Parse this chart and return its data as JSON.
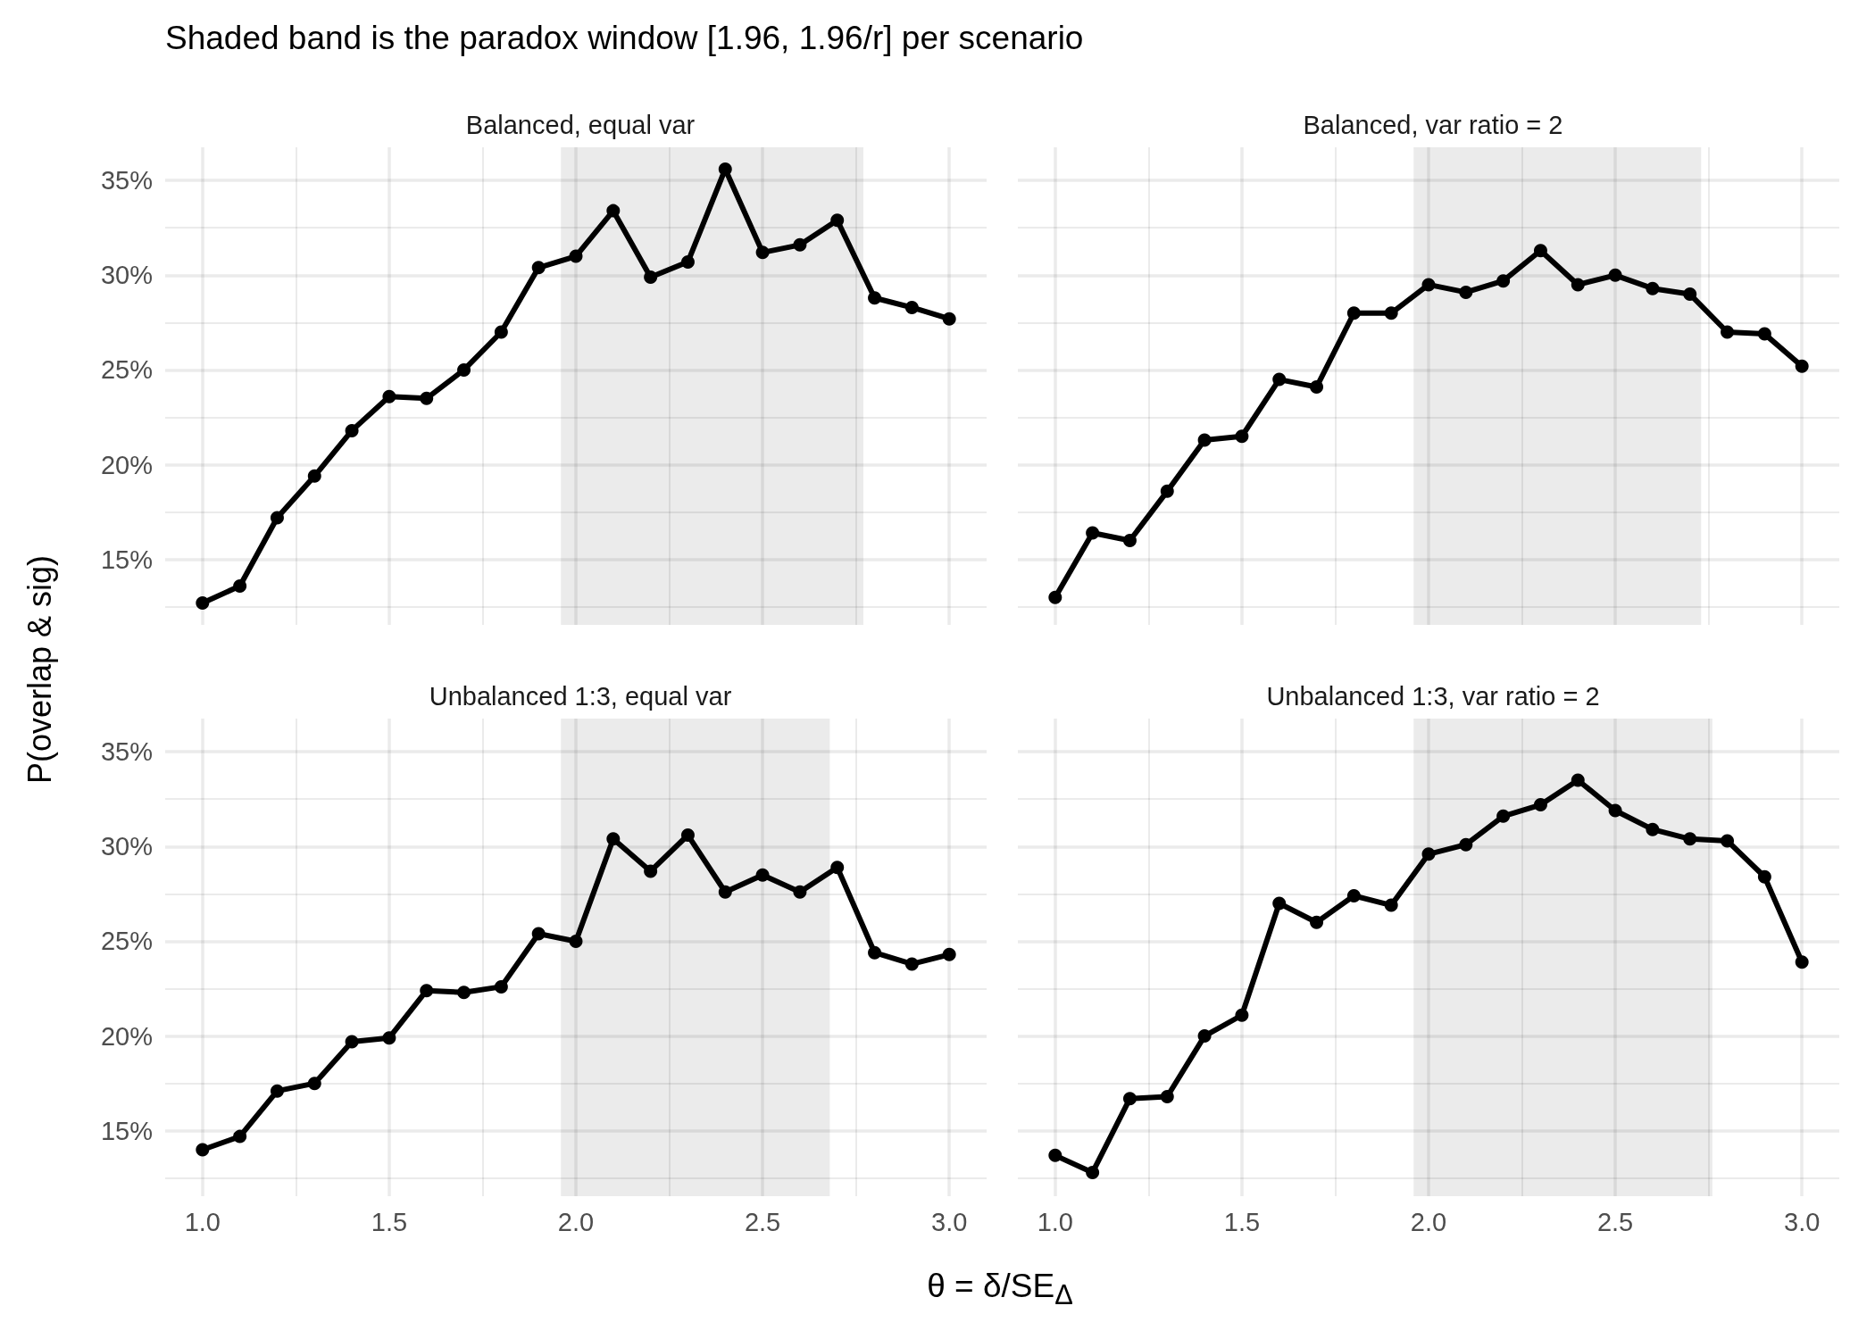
{
  "chart_data": [
    {
      "type": "line",
      "title": "Shaded band is the paradox window [1.96, 1.96/r] per scenario",
      "subtitle": "Balanced, equal var",
      "ylabel": "P(overlap & sig)",
      "x": [
        1.0,
        1.1,
        1.2,
        1.3,
        1.4,
        1.5,
        1.6,
        1.7,
        1.8,
        1.9,
        2.0,
        2.1,
        2.2,
        2.3,
        2.4,
        2.5,
        2.6,
        2.7,
        2.8,
        2.9,
        3.0
      ],
      "series": [
        {
          "color": "#000000",
          "values": [
            12.7,
            13.6,
            17.2,
            19.4,
            21.8,
            23.6,
            23.5,
            25.0,
            27.0,
            30.4,
            31.0,
            33.4,
            29.9,
            30.7,
            35.6,
            31.2,
            31.6,
            32.9,
            28.8,
            28.3,
            27.7
          ]
        }
      ],
      "xlim": [
        0.9,
        3.1
      ],
      "ylim": [
        11.55,
        36.75
      ],
      "xticks": [
        1.0,
        {
          "value": 1.25,
          "label": null
        },
        1.5,
        {
          "value": 1.75,
          "label": null
        },
        2.0,
        {
          "value": 2.25,
          "label": null
        },
        2.5,
        {
          "value": 2.75,
          "label": null
        },
        3.0
      ],
      "yticks": [
        {
          "value": 12.5,
          "label": null
        },
        {
          "value": 15,
          "label": "15%"
        },
        {
          "value": 17.5,
          "label": null
        },
        {
          "value": 20,
          "label": "20%"
        },
        {
          "value": 22.5,
          "label": null
        },
        {
          "value": 25,
          "label": "25%"
        },
        {
          "value": 27.5,
          "label": null
        },
        {
          "value": 30,
          "label": "30%"
        },
        {
          "value": 32.5,
          "label": null
        },
        {
          "value": 35,
          "label": "35%"
        }
      ],
      "bands": [
        {
          "axis": "x",
          "from": 1.96,
          "to": 2.77,
          "color": "#ebebeb"
        }
      ],
      "grid": true,
      "marker": "circle",
      "line_style": "solid",
      "tick_labels": "y"
    },
    {
      "type": "line",
      "subtitle": "Balanced, var ratio = 2",
      "x": [
        1.0,
        1.1,
        1.2,
        1.3,
        1.4,
        1.5,
        1.6,
        1.7,
        1.8,
        1.9,
        2.0,
        2.1,
        2.2,
        2.3,
        2.4,
        2.5,
        2.6,
        2.7,
        2.8,
        2.9,
        3.0
      ],
      "series": [
        {
          "color": "#000000",
          "values": [
            13.0,
            16.4,
            16.0,
            18.6,
            21.3,
            21.5,
            24.5,
            24.1,
            28.0,
            28.0,
            29.5,
            29.1,
            29.7,
            31.3,
            29.5,
            30.0,
            29.3,
            29.0,
            27.0,
            26.9,
            25.2
          ]
        }
      ],
      "xlim": [
        0.9,
        3.1
      ],
      "ylim": [
        11.55,
        36.75
      ],
      "xticks": [
        1.0,
        {
          "value": 1.25,
          "label": null
        },
        1.5,
        {
          "value": 1.75,
          "label": null
        },
        2.0,
        {
          "value": 2.25,
          "label": null
        },
        2.5,
        {
          "value": 2.75,
          "label": null
        },
        3.0
      ],
      "yticks": [
        {
          "value": 12.5,
          "label": null
        },
        15,
        {
          "value": 17.5,
          "label": null
        },
        20,
        {
          "value": 22.5,
          "label": null
        },
        25,
        {
          "value": 27.5,
          "label": null
        },
        30,
        {
          "value": 32.5,
          "label": null
        },
        35
      ],
      "bands": [
        {
          "axis": "x",
          "from": 1.96,
          "to": 2.73,
          "color": "#ebebeb"
        }
      ],
      "grid": true,
      "marker": "circle",
      "line_style": "solid",
      "tick_labels": false
    },
    {
      "type": "line",
      "subtitle": "Unbalanced 1:3, equal var",
      "xlabel": "θ = δ/SE$_{Δ}$",
      "x": [
        1.0,
        1.1,
        1.2,
        1.3,
        1.4,
        1.5,
        1.6,
        1.7,
        1.8,
        1.9,
        2.0,
        2.1,
        2.2,
        2.3,
        2.4,
        2.5,
        2.6,
        2.7,
        2.8,
        2.9,
        3.0
      ],
      "series": [
        {
          "color": "#000000",
          "values": [
            14.0,
            14.7,
            17.1,
            17.5,
            19.7,
            19.9,
            22.4,
            22.3,
            22.6,
            25.4,
            25.0,
            30.4,
            28.7,
            30.6,
            27.6,
            28.5,
            27.6,
            28.9,
            24.4,
            23.8,
            24.3
          ]
        }
      ],
      "xlim": [
        0.9,
        3.1
      ],
      "ylim": [
        11.55,
        36.75
      ],
      "xticks": [
        {
          "value": 1.0,
          "label": "1.0"
        },
        {
          "value": 1.25,
          "label": null
        },
        {
          "value": 1.5,
          "label": "1.5"
        },
        {
          "value": 1.75,
          "label": null
        },
        {
          "value": 2.0,
          "label": "2.0"
        },
        {
          "value": 2.25,
          "label": null
        },
        {
          "value": 2.5,
          "label": "2.5"
        },
        {
          "value": 2.75,
          "label": null
        },
        {
          "value": 3.0,
          "label": "3.0"
        }
      ],
      "yticks": [
        {
          "value": 12.5,
          "label": null
        },
        {
          "value": 15,
          "label": "15%"
        },
        {
          "value": 17.5,
          "label": null
        },
        {
          "value": 20,
          "label": "20%"
        },
        {
          "value": 22.5,
          "label": null
        },
        {
          "value": 25,
          "label": "25%"
        },
        {
          "value": 27.5,
          "label": null
        },
        {
          "value": 30,
          "label": "30%"
        },
        {
          "value": 32.5,
          "label": null
        },
        {
          "value": 35,
          "label": "35%"
        }
      ],
      "bands": [
        {
          "axis": "x",
          "from": 1.96,
          "to": 2.68,
          "color": "#ebebeb"
        }
      ],
      "grid": true,
      "marker": "circle",
      "line_style": "solid"
    },
    {
      "type": "line",
      "subtitle": "Unbalanced 1:3, var ratio = 2",
      "x": [
        1.0,
        1.1,
        1.2,
        1.3,
        1.4,
        1.5,
        1.6,
        1.7,
        1.8,
        1.9,
        2.0,
        2.1,
        2.2,
        2.3,
        2.4,
        2.5,
        2.6,
        2.7,
        2.8,
        2.9,
        3.0
      ],
      "series": [
        {
          "color": "#000000",
          "values": [
            13.7,
            12.8,
            16.7,
            16.8,
            20.0,
            21.1,
            27.0,
            26.0,
            27.4,
            26.9,
            29.6,
            30.1,
            31.6,
            32.2,
            33.5,
            31.9,
            30.9,
            30.4,
            30.3,
            28.4,
            23.9
          ]
        }
      ],
      "xlim": [
        0.9,
        3.1
      ],
      "ylim": [
        11.55,
        36.75
      ],
      "xticks": [
        {
          "value": 1.0,
          "label": "1.0"
        },
        {
          "value": 1.25,
          "label": null
        },
        {
          "value": 1.5,
          "label": "1.5"
        },
        {
          "value": 1.75,
          "label": null
        },
        {
          "value": 2.0,
          "label": "2.0"
        },
        {
          "value": 2.25,
          "label": null
        },
        {
          "value": 2.5,
          "label": "2.5"
        },
        {
          "value": 2.75,
          "label": null
        },
        {
          "value": 3.0,
          "label": "3.0"
        }
      ],
      "yticks": [
        {
          "value": 12.5,
          "label": null
        },
        15,
        {
          "value": 17.5,
          "label": null
        },
        20,
        {
          "value": 22.5,
          "label": null
        },
        25,
        {
          "value": 27.5,
          "label": null
        },
        30,
        {
          "value": 32.5,
          "label": null
        },
        35
      ],
      "bands": [
        {
          "axis": "x",
          "from": 1.96,
          "to": 2.76,
          "color": "#ebebeb"
        }
      ],
      "grid": true,
      "marker": "circle",
      "line_style": "solid",
      "tick_labels": "x"
    }
  ]
}
